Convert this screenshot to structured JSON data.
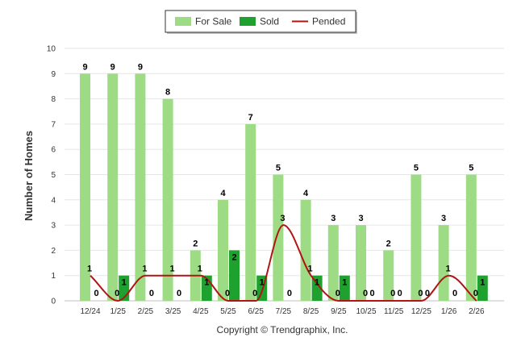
{
  "chart_data": {
    "type": "bar",
    "categories": [
      "12/24",
      "1/25",
      "2/25",
      "3/25",
      "4/25",
      "5/25",
      "6/25",
      "7/25",
      "8/25",
      "9/25",
      "10/25",
      "11/25",
      "12/25",
      "1/26",
      "2/26"
    ],
    "series": [
      {
        "name": "For Sale",
        "type": "bar",
        "color": "#9ddc84",
        "values": [
          9,
          9,
          9,
          8,
          2,
          4,
          7,
          5,
          4,
          3,
          3,
          2,
          5,
          3,
          5
        ]
      },
      {
        "name": "Sold",
        "type": "bar",
        "color": "#1ea12e",
        "values": [
          0,
          1,
          0,
          0,
          1,
          2,
          1,
          0,
          1,
          1,
          0,
          0,
          0,
          0,
          1
        ]
      },
      {
        "name": "Pended",
        "type": "line",
        "color": "#b21313",
        "values": [
          1,
          0,
          1,
          1,
          1,
          0,
          0,
          3,
          1,
          0,
          0,
          0,
          0,
          1,
          0
        ]
      }
    ],
    "ylabel": "Number of Homes",
    "ylim": [
      0,
      10
    ],
    "yticks": [
      0,
      1,
      2,
      3,
      4,
      5,
      6,
      7,
      8,
      9,
      10
    ],
    "grid": true,
    "legend": "top-center"
  },
  "copyright": "Copyright © Trendgraphix, Inc."
}
